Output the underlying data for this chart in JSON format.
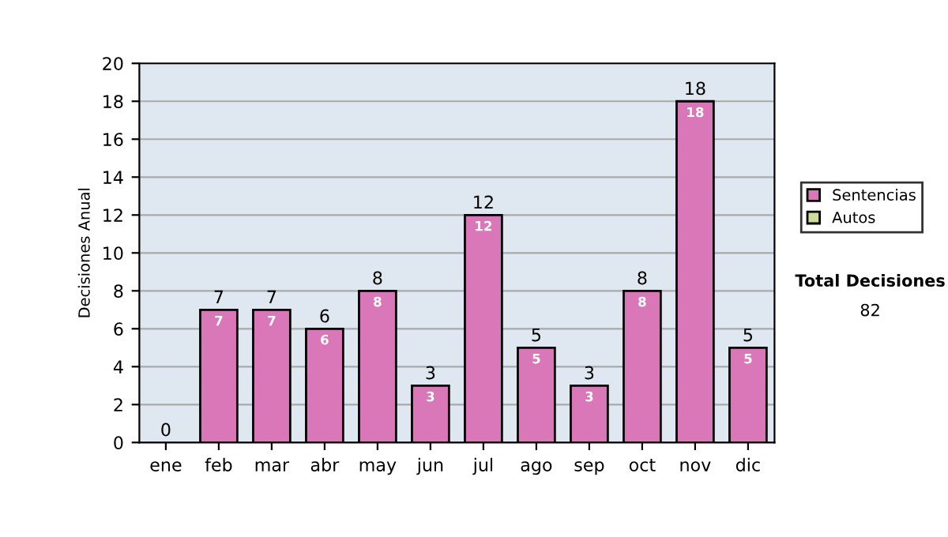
{
  "chart_data": {
    "type": "bar",
    "ylabel": "Decisiones Anual",
    "categories": [
      "ene",
      "feb",
      "mar",
      "abr",
      "may",
      "jun",
      "jul",
      "ago",
      "sep",
      "oct",
      "nov",
      "dic"
    ],
    "stacked": true,
    "series": [
      {
        "name": "Sentencias",
        "color": "#d977b9",
        "values": [
          0,
          7,
          7,
          6,
          8,
          3,
          12,
          5,
          3,
          8,
          18,
          5
        ],
        "value_labels": [
          null,
          "7",
          "7",
          "6",
          "8",
          "3",
          "12",
          "5",
          "3",
          "8",
          "18",
          "5"
        ]
      },
      {
        "name": "Autos",
        "color": "#ccdd99",
        "values": [
          0,
          0,
          0,
          0,
          0,
          0,
          0,
          0,
          0,
          0,
          0,
          0
        ]
      }
    ],
    "totals": [
      "0",
      "7",
      "7",
      "6",
      "8",
      "3",
      "12",
      "5",
      "3",
      "8",
      "18",
      "5"
    ],
    "ylim": [
      0,
      20
    ],
    "yticks": [
      0,
      2,
      4,
      6,
      8,
      10,
      12,
      14,
      16,
      18,
      20
    ],
    "grid": "y",
    "legend": "right",
    "annotations": [
      "Total Decisiones",
      "82"
    ]
  }
}
